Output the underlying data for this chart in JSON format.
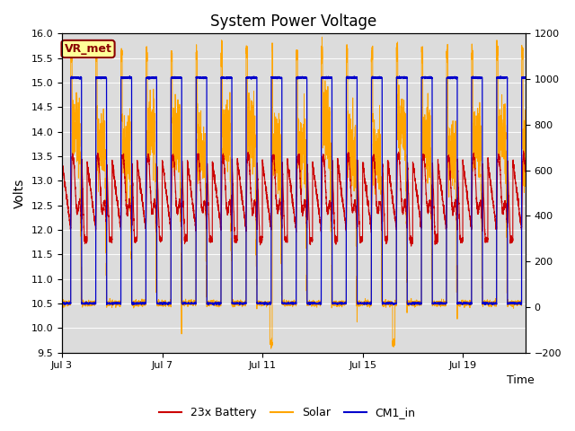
{
  "title": "System Power Voltage",
  "xlabel": "Time",
  "ylabel": "Volts",
  "ylim_left": [
    9.5,
    16.0
  ],
  "ylim_right": [
    -200,
    1200
  ],
  "yticks_left": [
    9.5,
    10.0,
    10.5,
    11.0,
    11.5,
    12.0,
    12.5,
    13.0,
    13.5,
    14.0,
    14.5,
    15.0,
    15.5,
    16.0
  ],
  "yticks_right": [
    -200,
    0,
    200,
    400,
    600,
    800,
    1000,
    1200
  ],
  "xtick_positions": [
    0,
    4,
    8,
    12,
    16
  ],
  "xtick_labels": [
    "Jul 3",
    "Jul 7",
    "Jul 11",
    "Jul 15",
    "Jul 19"
  ],
  "xlim": [
    0,
    18.5
  ],
  "annotation_text": "VR_met",
  "annotation_color": "#8B0000",
  "annotation_bg": "#FFFF99",
  "bg_color": "#DCDCDC",
  "battery_color": "#CC0000",
  "solar_color": "#FFA500",
  "cm1_color": "#0000CC",
  "title_fontsize": 12,
  "n_points": 5000,
  "total_days": 18.5,
  "day_start_phase": 0.35,
  "day_end_phase": 0.78,
  "cm1_high": 15.1,
  "cm1_low": 10.5,
  "battery_night_start": 13.4,
  "battery_night_end": 12.0,
  "battery_day_peak": 13.4,
  "solar_day_base": 13.8,
  "solar_day_noise": 0.35,
  "solar_night_val": 10.5
}
